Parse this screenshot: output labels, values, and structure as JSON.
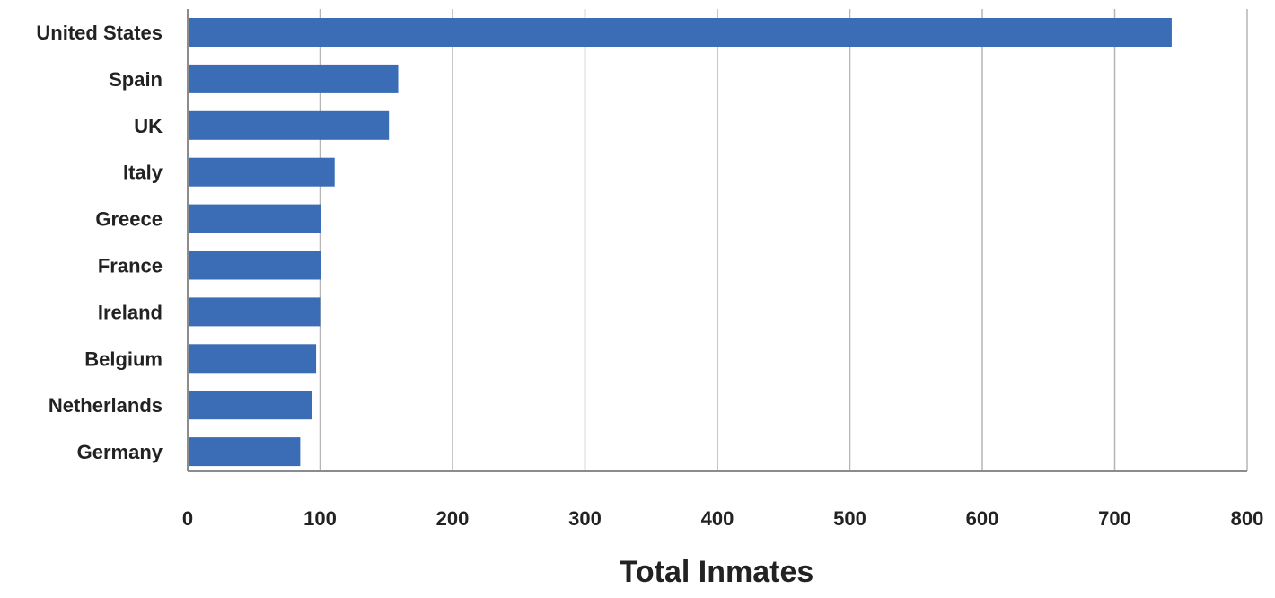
{
  "chart_data": {
    "type": "bar",
    "orientation": "horizontal",
    "title": "",
    "xlabel": "Total Inmates",
    "ylabel": "",
    "categories": [
      "United States",
      "Spain",
      "UK",
      "Italy",
      "Greece",
      "France",
      "Ireland",
      "Belgium",
      "Netherlands",
      "Germany"
    ],
    "values": [
      743,
      159,
      152,
      111,
      101,
      101,
      100,
      97,
      94,
      85
    ],
    "xlim": [
      0,
      800
    ],
    "xticks": [
      0,
      100,
      200,
      300,
      400,
      500,
      600,
      700,
      800
    ],
    "grid": "vertical",
    "legend": "none",
    "bar_color": "#3a6db5",
    "grid_color": "#b5b5b5",
    "axis_color": "#8c8c8c"
  }
}
